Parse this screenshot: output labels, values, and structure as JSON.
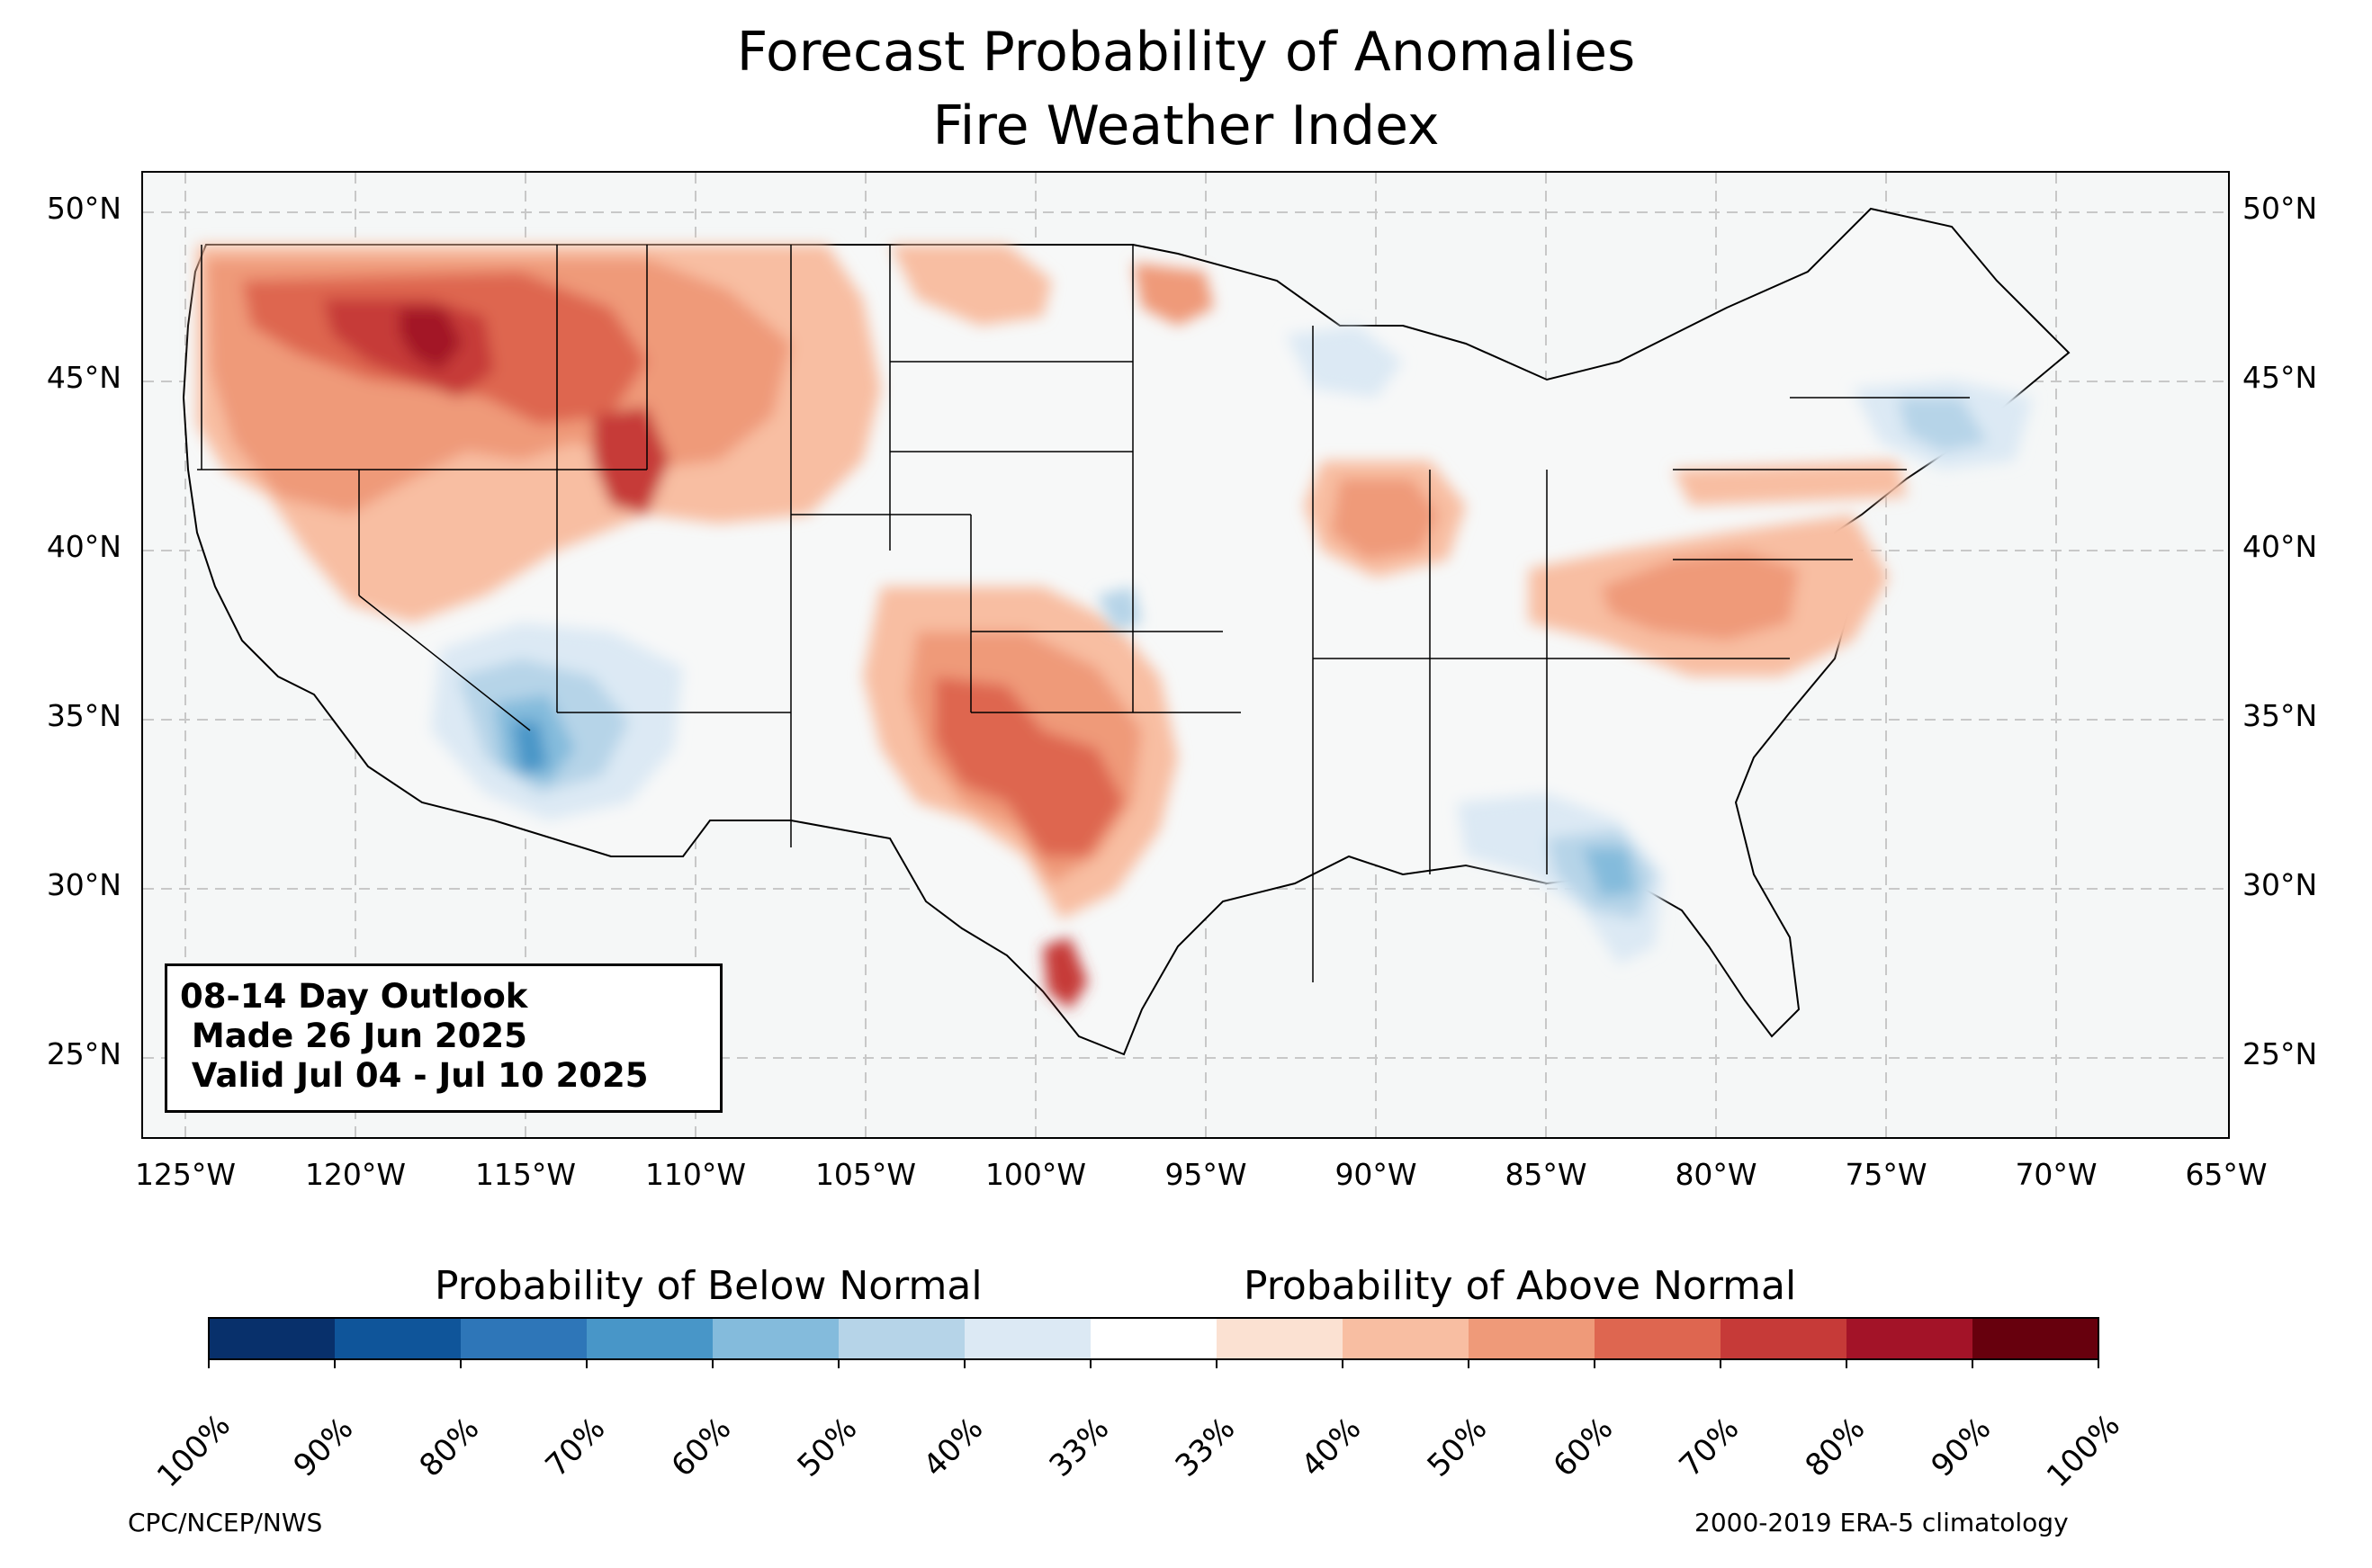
{
  "title": {
    "line1": "Forecast Probability of Anomalies",
    "line2": "Fire Weather Index"
  },
  "map": {
    "background_color": "#f5f7f7",
    "lat_labels": [
      "50°N",
      "45°N",
      "40°N",
      "35°N",
      "30°N",
      "25°N"
    ],
    "lon_labels": [
      "125°W",
      "120°W",
      "115°W",
      "110°W",
      "105°W",
      "100°W",
      "95°W",
      "90°W",
      "85°W",
      "80°W",
      "75°W",
      "70°W",
      "65°W"
    ],
    "info_box": {
      "line1": "08-14 Day Outlook",
      "line2": " Made 26 Jun 2025",
      "line3": " Valid Jul 04 - Jul 10 2025"
    },
    "anomaly_regions": [
      {
        "name": "Pacific Northwest and northern Rockies",
        "category": "above",
        "probability": "60%-80%"
      },
      {
        "name": "Central Idaho / Wyoming core",
        "category": "above",
        "probability": "80%"
      },
      {
        "name": "Southern Plains and Texas",
        "category": "above",
        "probability": "60%-70%"
      },
      {
        "name": "South Texas coast",
        "category": "above",
        "probability": "80%"
      },
      {
        "name": "Illinois / Indiana",
        "category": "above",
        "probability": "50%"
      },
      {
        "name": "Mid-Atlantic / Virginia",
        "category": "above",
        "probability": "50%-60%"
      },
      {
        "name": "Arizona / Southwest",
        "category": "below",
        "probability": "60%-70%"
      },
      {
        "name": "Georgia / Florida",
        "category": "below",
        "probability": "50%-60%"
      },
      {
        "name": "Northeast / New England",
        "category": "below",
        "probability": "40%-50%"
      },
      {
        "name": "Great Lakes / Wisconsin",
        "category": "below",
        "probability": "40%"
      }
    ]
  },
  "colorbar": {
    "below_heading": "Probability of Below Normal",
    "above_heading": "Probability of Above Normal",
    "colors": [
      "#08306b",
      "#0f559a",
      "#2e76b8",
      "#4896c8",
      "#84bbdc",
      "#b6d4e8",
      "#dce9f4",
      "#ffffff",
      "#fbe1d2",
      "#f8bea2",
      "#ef9a79",
      "#de6650",
      "#c63a38",
      "#a31328",
      "#67000d"
    ],
    "tick_labels": [
      "100%",
      "90%",
      "80%",
      "70%",
      "60%",
      "50%",
      "40%",
      "33%",
      "33%",
      "40%",
      "50%",
      "60%",
      "70%",
      "80%",
      "90%",
      "100%"
    ]
  },
  "footer": {
    "left": "CPC/NCEP/NWS",
    "right": "2000-2019 ERA-5 climatology"
  }
}
